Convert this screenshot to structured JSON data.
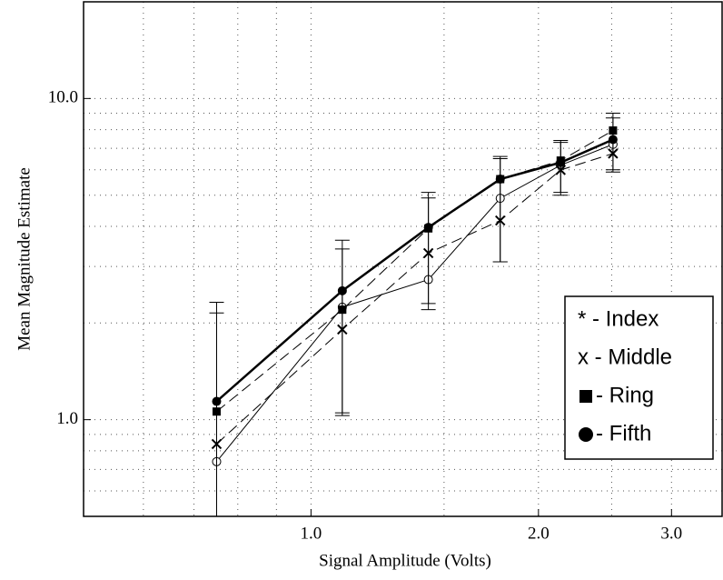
{
  "chart_data": {
    "type": "line",
    "x_label": "Signal Amplitude (Volts)",
    "y_label": "Mean Magnitude Estimate",
    "x_log": true,
    "y_log": true,
    "grid": true,
    "legend_position": "lower right",
    "xlim": [
      0.5,
      3.5
    ],
    "ylim": [
      0.5,
      20
    ],
    "xticks": [
      {
        "value": 1,
        "label": "1.0"
      },
      {
        "value": 2,
        "label": "2.0"
      },
      {
        "value": 3,
        "label": "3.0"
      }
    ],
    "yticks": [
      {
        "value": 1,
        "label": "1.0"
      },
      {
        "value": 10,
        "label": "10.0"
      }
    ],
    "xminor": [
      0.6,
      0.7,
      0.8,
      0.9,
      1.5,
      2.5
    ],
    "yminor": [
      0.6,
      0.7,
      0.8,
      0.9,
      2,
      3,
      4,
      5,
      6,
      7,
      8,
      9
    ],
    "x": [
      0.75,
      1.1,
      1.43,
      1.78,
      2.14,
      2.51
    ],
    "series": [
      {
        "name": "* - Index",
        "color": "#000",
        "marker": "circle-open",
        "dash": "none",
        "width": 1,
        "values": [
          0.74,
          2.24,
          2.73,
          4.89,
          6.2,
          7.2
        ]
      },
      {
        "name": "x - Middle",
        "color": "#000",
        "marker": "x",
        "dash": "12,6",
        "width": 1,
        "values": [
          0.84,
          1.91,
          3.3,
          4.17,
          5.99,
          6.74
        ]
      },
      {
        "name": "- Ring",
        "color": "#000",
        "marker": "square",
        "dash": "12,6",
        "width": 1,
        "values": [
          1.06,
          2.2,
          3.94,
          5.61,
          6.41,
          7.95
        ],
        "error_low": [
          0.5,
          1.03,
          2.2,
          3.1,
          5.1,
          6.0
        ],
        "error_high": [
          2.15,
          3.4,
          4.9,
          6.5,
          7.3,
          8.7
        ]
      },
      {
        "name": "- Fifth",
        "color": "#000",
        "marker": "circle",
        "dash": "none",
        "width": 2.5,
        "values": [
          1.14,
          2.52,
          3.97,
          5.61,
          6.32,
          7.45
        ],
        "error_low": [
          0.5,
          1.05,
          2.3,
          3.1,
          5.0,
          5.9
        ],
        "error_high": [
          2.32,
          3.62,
          5.1,
          6.6,
          7.4,
          9.0
        ]
      }
    ]
  }
}
